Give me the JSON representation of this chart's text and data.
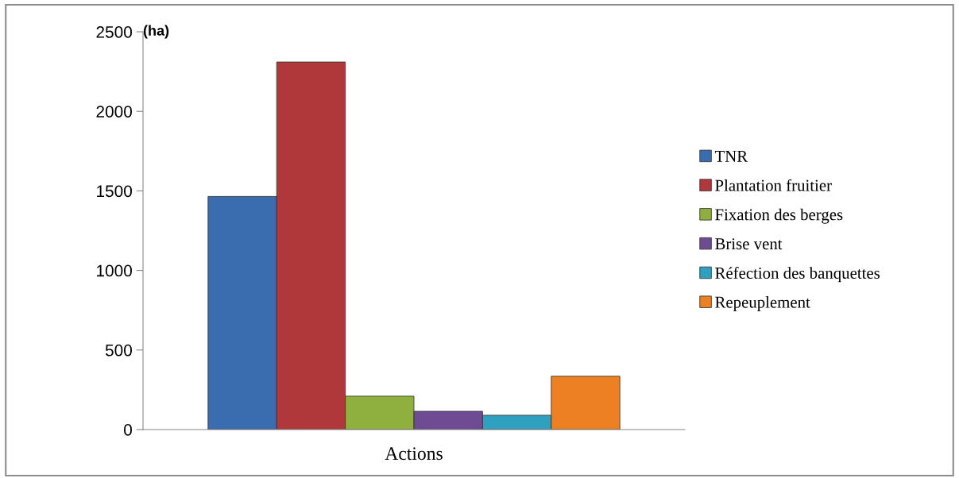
{
  "chart_data": {
    "type": "bar",
    "ylabel": "(ha)",
    "xlabel": "Actions",
    "categories": [
      null
    ],
    "series": [
      {
        "name": "TNR",
        "color": "#3a6db0",
        "values": [
          1465
        ]
      },
      {
        "name": "Plantation fruitier",
        "color": "#b0373a",
        "values": [
          2310
        ]
      },
      {
        "name": "Fixation des berges",
        "color": "#8fb03f",
        "values": [
          210
        ]
      },
      {
        "name": "Brise vent",
        "color": "#6e4b92",
        "values": [
          115
        ]
      },
      {
        "name": "Réfection des banquettes",
        "color": "#2fa0c0",
        "values": [
          90
        ]
      },
      {
        "name": "Repeuplement",
        "color": "#ec8022",
        "values": [
          335
        ]
      }
    ],
    "ylim": [
      0,
      2500
    ],
    "yticks": [
      0,
      500,
      1000,
      1500,
      2000,
      2500
    ],
    "grid": false,
    "legend": "right"
  }
}
